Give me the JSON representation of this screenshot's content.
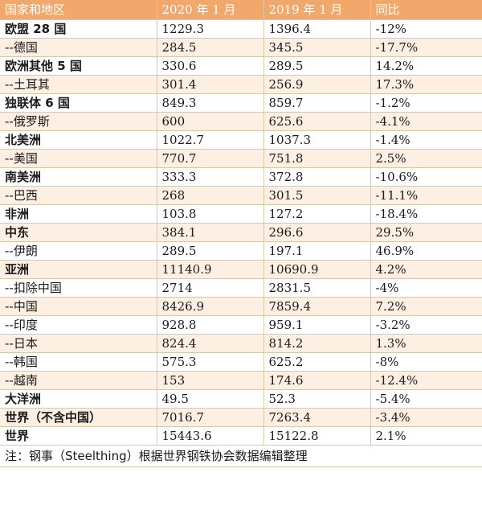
{
  "table": {
    "headers": [
      "国家和地区",
      "2020 年 1 月",
      "2019 年 1 月",
      "同比"
    ],
    "rows": [
      {
        "region": "欧盟 28 国",
        "y2020": "1229.3",
        "y2019": "1396.4",
        "yoy": "-12%",
        "bold": true
      },
      {
        "region": "--德国",
        "y2020": "284.5",
        "y2019": "345.5",
        "yoy": "-17.7%",
        "bold": false
      },
      {
        "region": "欧洲其他 5 国",
        "y2020": "330.6",
        "y2019": "289.5",
        "yoy": "14.2%",
        "bold": true
      },
      {
        "region": "--土耳其",
        "y2020": "301.4",
        "y2019": "256.9",
        "yoy": "17.3%",
        "bold": false
      },
      {
        "region": "独联体 6 国",
        "y2020": "849.3",
        "y2019": "859.7",
        "yoy": "-1.2%",
        "bold": true
      },
      {
        "region": "--俄罗斯",
        "y2020": "600",
        "y2019": "625.6",
        "yoy": "-4.1%",
        "bold": false
      },
      {
        "region": "北美洲",
        "y2020": "1022.7",
        "y2019": "1037.3",
        "yoy": "-1.4%",
        "bold": true
      },
      {
        "region": "--美国",
        "y2020": "770.7",
        "y2019": "751.8",
        "yoy": "2.5%",
        "bold": false
      },
      {
        "region": "南美洲",
        "y2020": "333.3",
        "y2019": "372.8",
        "yoy": "-10.6%",
        "bold": true
      },
      {
        "region": "--巴西",
        "y2020": "268",
        "y2019": "301.5",
        "yoy": "-11.1%",
        "bold": false
      },
      {
        "region": "非洲",
        "y2020": "103.8",
        "y2019": "127.2",
        "yoy": "-18.4%",
        "bold": true
      },
      {
        "region": "中东",
        "y2020": "384.1",
        "y2019": "296.6",
        "yoy": "29.5%",
        "bold": true
      },
      {
        "region": "--伊朗",
        "y2020": "289.5",
        "y2019": "197.1",
        "yoy": "46.9%",
        "bold": false
      },
      {
        "region": "亚洲",
        "y2020": "11140.9",
        "y2019": "10690.9",
        "yoy": "4.2%",
        "bold": true
      },
      {
        "region": "--扣除中国",
        "y2020": "2714",
        "y2019": "2831.5",
        "yoy": "-4%",
        "bold": false
      },
      {
        "region": "--中国",
        "y2020": "8426.9",
        "y2019": "7859.4",
        "yoy": "7.2%",
        "bold": false
      },
      {
        "region": "--印度",
        "y2020": "928.8",
        "y2019": "959.1",
        "yoy": "-3.2%",
        "bold": false
      },
      {
        "region": "--日本",
        "y2020": "824.4",
        "y2019": "814.2",
        "yoy": "1.3%",
        "bold": false
      },
      {
        "region": "--韩国",
        "y2020": "575.3",
        "y2019": "625.2",
        "yoy": "-8%",
        "bold": false
      },
      {
        "region": "--越南",
        "y2020": "153",
        "y2019": "174.6",
        "yoy": "-12.4%",
        "bold": false
      },
      {
        "region": "大洋洲",
        "y2020": "49.5",
        "y2019": "52.3",
        "yoy": "-5.4%",
        "bold": true
      },
      {
        "region": "世界（不含中国）",
        "y2020": "7016.7",
        "y2019": "7263.4",
        "yoy": "-3.4%",
        "bold": true
      },
      {
        "region": "世界",
        "y2020": "15443.6",
        "y2019": "15122.8",
        "yoy": "2.1%",
        "bold": true
      }
    ],
    "note": "注：钢事（Steelthing）根据世界钢铁协会数据编辑整理"
  },
  "colors": {
    "header_bg": "#f2a86a",
    "header_text": "#ffffff",
    "alt_row_bg": "#fdf0e3",
    "border": "#d8c7a8"
  }
}
